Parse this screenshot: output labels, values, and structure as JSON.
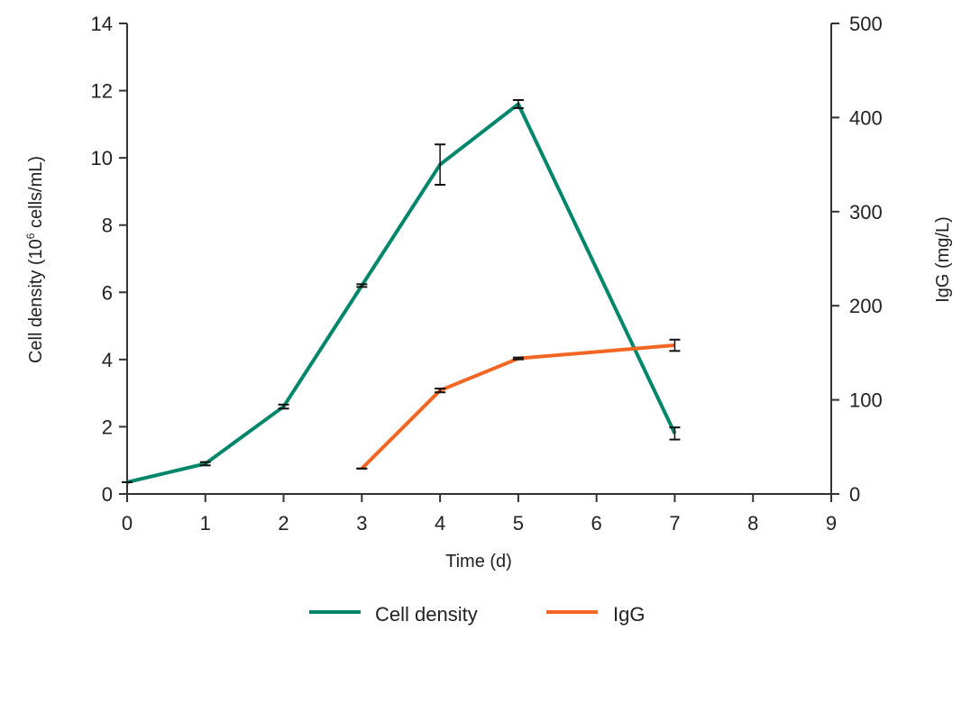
{
  "chart_data": {
    "type": "line",
    "title": "",
    "xlabel": "Time (d)",
    "ylabel_left": "Cell density (10",
    "ylabel_left_sup": "6",
    "ylabel_left_suffix": " cells/mL)",
    "ylabel_right": "IgG (mg/L)",
    "xlim": [
      0,
      9
    ],
    "ylim_left": [
      0,
      14
    ],
    "ylim_right": [
      0,
      500
    ],
    "x_ticks": [
      "0",
      "1",
      "2",
      "3",
      "4",
      "5",
      "6",
      "7",
      "8",
      "9"
    ],
    "y_left_ticks": [
      "0",
      "2",
      "4",
      "6",
      "8",
      "10",
      "12",
      "14"
    ],
    "y_right_ticks": [
      "0",
      "100",
      "200",
      "300",
      "400",
      "500"
    ],
    "grid": false,
    "legend_position": "bottom-center",
    "series": [
      {
        "name": "Cell density",
        "axis": "left",
        "color": "#00866a",
        "x": [
          0,
          1,
          2,
          3,
          4,
          5,
          7
        ],
        "y": [
          0.35,
          0.9,
          2.6,
          6.2,
          9.8,
          11.6,
          1.8
        ],
        "error": [
          0,
          0.05,
          0.06,
          0.04,
          0.6,
          0.12,
          0.18
        ]
      },
      {
        "name": "IgG",
        "axis": "right",
        "color": "#f26522",
        "x": [
          3,
          4,
          5,
          7
        ],
        "y": [
          27,
          110,
          144,
          158
        ],
        "error": [
          0,
          2,
          1,
          6
        ]
      }
    ]
  }
}
